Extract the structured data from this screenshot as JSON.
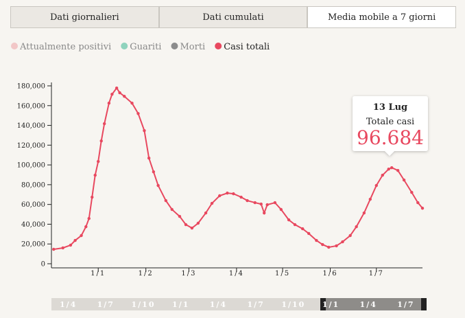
{
  "tabs": [
    "Dati giornalieri",
    "Dati cumulati",
    "Media mobile a 7 giorni"
  ],
  "legend": [
    {
      "name": "Attualmente positivi",
      "color": "#f2c7c7"
    },
    {
      "name": "Guariti",
      "color": "#8fd3bd"
    },
    {
      "name": "Morti",
      "color": "#8c8c8c"
    },
    {
      "name": "Casi totali",
      "color": "#e8485f"
    }
  ],
  "chart_data": {
    "type": "line",
    "x": [
      -29,
      -23,
      -18,
      -15,
      -11,
      -8,
      -6,
      -4,
      -2,
      0,
      2,
      4,
      7,
      9,
      12,
      14,
      17,
      22,
      26,
      30,
      33,
      36,
      39,
      44,
      48,
      53,
      57,
      61,
      65,
      70,
      74,
      79,
      84,
      88,
      93,
      97,
      102,
      106,
      108,
      110,
      115,
      119,
      124,
      128,
      133,
      137,
      142,
      146,
      150,
      155,
      159,
      164,
      168,
      173,
      177,
      181,
      185,
      189,
      191,
      195,
      199,
      204,
      208,
      211
    ],
    "series": [
      {
        "name": "Casi totali",
        "color": "#e8485f",
        "values": [
          14600,
          16000,
          18800,
          23600,
          28500,
          37500,
          45800,
          67400,
          89600,
          103500,
          124300,
          141700,
          162500,
          171500,
          177800,
          173000,
          169400,
          162500,
          152000,
          134700,
          106900,
          93000,
          79200,
          63900,
          54900,
          47900,
          39600,
          36100,
          41000,
          51400,
          61100,
          68800,
          71500,
          70800,
          67400,
          63900,
          61800,
          60400,
          51400,
          59700,
          61800,
          54900,
          44400,
          39600,
          35400,
          30600,
          23600,
          19400,
          16700,
          18100,
          22200,
          28500,
          37500,
          51400,
          65300,
          79200,
          89600,
          95800,
          97200,
          94400,
          84700,
          72200,
          61800,
          56200
        ]
      }
    ],
    "xlim": [
      -30,
      211
    ],
    "xticks": [
      {
        "value": 0,
        "label": "1/1"
      },
      {
        "value": 31,
        "label": "1/2"
      },
      {
        "value": 59,
        "label": "1/3"
      },
      {
        "value": 90,
        "label": "1/4"
      },
      {
        "value": 120,
        "label": "1/5"
      },
      {
        "value": 151,
        "label": "1/6"
      },
      {
        "value": 181,
        "label": "1/7"
      }
    ],
    "ylim": [
      0,
      180000
    ],
    "yticks": [
      0,
      {
        "value": 20000,
        "label": "20,000"
      },
      {
        "value": 40000,
        "label": "40,000"
      },
      {
        "value": 60000,
        "label": "60,000"
      },
      {
        "value": 80000,
        "label": "80,000"
      },
      {
        "value": 100000,
        "label": "100,000"
      },
      {
        "value": 120000,
        "label": "120,000"
      },
      {
        "value": 140000,
        "label": "140,000"
      },
      {
        "value": 160000,
        "label": "160,000"
      },
      {
        "value": 180000,
        "label": "180,000"
      }
    ]
  },
  "tooltip": {
    "date": "13 Lug",
    "label": "Totale casi",
    "value": "96.684"
  },
  "navigator": [
    "1/4",
    "1/7",
    "1/10",
    "1/1",
    "1/4",
    "1/7",
    "1/10",
    "1/1",
    "1/4",
    "1/7"
  ]
}
